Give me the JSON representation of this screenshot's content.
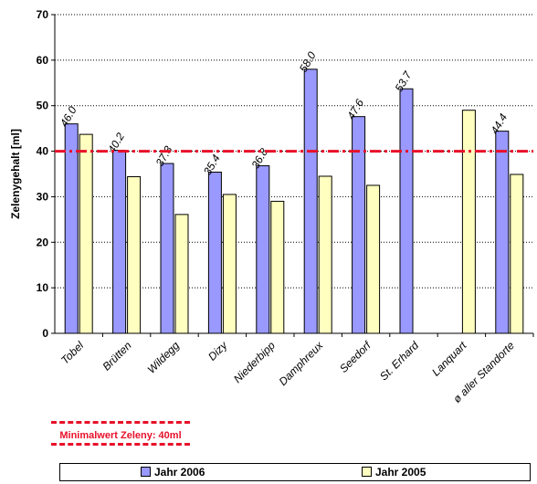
{
  "chart_data": {
    "type": "bar",
    "ylabel": "Zelenygehalt [ml]",
    "ylim": [
      0,
      70
    ],
    "yticks": [
      0,
      10,
      20,
      30,
      40,
      50,
      60,
      70
    ],
    "categories": [
      "Tobel",
      "Brütten",
      "Wildegg",
      "Dizy",
      "Niederbipp",
      "Damphreux",
      "Seedorf",
      "St. Erhard",
      "Lanquart",
      "ø aller Standorte"
    ],
    "series": [
      {
        "name": "Jahr 2006",
        "color": "#9999ff",
        "values": [
          46.0,
          40.2,
          37.3,
          35.4,
          36.8,
          58.0,
          47.6,
          53.7,
          null,
          44.4
        ]
      },
      {
        "name": "Jahr 2005",
        "color": "#ffffc0",
        "values": [
          43.7,
          34.4,
          26.1,
          30.5,
          29.0,
          34.5,
          32.5,
          null,
          49.0,
          34.9
        ]
      }
    ],
    "data_labels": [
      "46.0",
      "40.2",
      "37.3",
      "35.4",
      "36.8",
      "58.0",
      "47.6",
      "53.7",
      "",
      "44.4"
    ],
    "reference_line": {
      "value": 40,
      "color": "#e8102a",
      "label": "Minimalwert Zeleny: 40ml"
    },
    "grid": "horizontal dotted",
    "legend_position": "bottom"
  }
}
